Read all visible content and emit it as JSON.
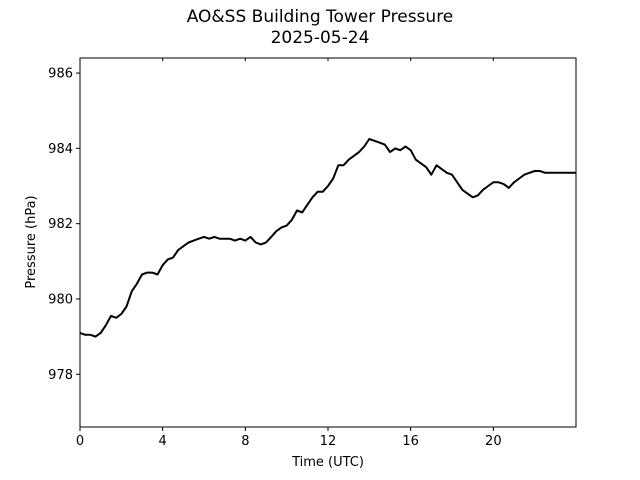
{
  "chart_data": {
    "type": "line",
    "title": "AO&SS Building Tower Pressure",
    "subtitle": "2025-05-24",
    "xlabel": "Time (UTC)",
    "ylabel": "Pressure (hPa)",
    "xlim": [
      0,
      24
    ],
    "ylim": [
      976.6,
      986.4
    ],
    "xticks": [
      0,
      4,
      8,
      12,
      16,
      20
    ],
    "yticks": [
      978,
      980,
      982,
      984,
      986
    ],
    "grid": false,
    "line_color": "#000000",
    "series": [
      {
        "x": [
          0,
          0.25,
          0.5,
          0.75,
          1.0,
          1.25,
          1.5,
          1.75,
          2.0,
          2.25,
          2.5,
          2.75,
          3.0,
          3.25,
          3.5,
          3.75,
          4.0,
          4.25,
          4.5,
          4.75,
          5.0,
          5.25,
          5.5,
          5.75,
          6.0,
          6.25,
          6.5,
          6.75,
          7.0,
          7.25,
          7.5,
          7.75,
          8.0,
          8.25,
          8.5,
          8.75,
          9.0,
          9.25,
          9.5,
          9.75,
          10.0,
          10.25,
          10.5,
          10.75,
          11.0,
          11.25,
          11.5,
          11.75,
          12.0,
          12.25,
          12.5,
          12.75,
          13.0,
          13.25,
          13.5,
          13.75,
          14.0,
          14.25,
          14.5,
          14.75,
          15.0,
          15.25,
          15.5,
          15.75,
          16.0,
          16.25,
          16.5,
          16.75,
          17.0,
          17.25,
          17.5,
          17.75,
          18.0,
          18.25,
          18.5,
          18.75,
          19.0,
          19.25,
          19.5,
          19.75,
          20.0,
          20.25,
          20.5,
          20.75,
          21.0,
          21.25,
          21.5,
          21.75,
          22.0,
          22.25,
          22.5,
          22.75,
          23.0,
          23.25,
          23.5,
          23.75,
          24.0
        ],
        "values": [
          979.1,
          979.05,
          979.05,
          979.0,
          979.1,
          979.3,
          979.55,
          979.5,
          979.6,
          979.8,
          980.2,
          980.4,
          980.65,
          980.7,
          980.7,
          980.65,
          980.9,
          981.05,
          981.1,
          981.3,
          981.4,
          981.5,
          981.55,
          981.6,
          981.65,
          981.6,
          981.65,
          981.6,
          981.6,
          981.6,
          981.55,
          981.6,
          981.55,
          981.65,
          981.5,
          981.45,
          981.5,
          981.65,
          981.8,
          981.9,
          981.95,
          982.1,
          982.35,
          982.3,
          982.5,
          982.7,
          982.85,
          982.85,
          983.0,
          983.2,
          983.55,
          983.55,
          983.7,
          983.8,
          983.9,
          984.05,
          984.25,
          984.2,
          984.15,
          984.1,
          983.9,
          984.0,
          983.95,
          984.05,
          983.95,
          983.7,
          983.6,
          983.5,
          983.3,
          983.55,
          983.45,
          983.35,
          983.3,
          983.1,
          982.9,
          982.8,
          982.7,
          982.75,
          982.9,
          983.0,
          983.1,
          983.1,
          983.05,
          982.95,
          983.1,
          983.2,
          983.3,
          983.35,
          983.4,
          983.4,
          983.35,
          983.35,
          983.35,
          983.35,
          983.35,
          983.35,
          983.35
        ]
      }
    ]
  }
}
